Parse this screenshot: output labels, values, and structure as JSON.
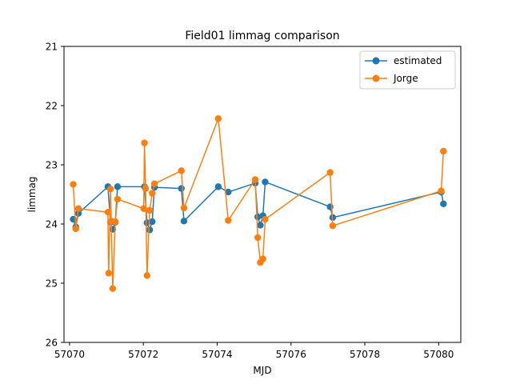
{
  "chart_data": {
    "type": "line",
    "title": "Field01 limmag comparison",
    "xlabel": "MJD",
    "ylabel": "limmag",
    "xlim": [
      57069.85,
      57080.6
    ],
    "ylim": [
      26,
      21
    ],
    "y_inverted": true,
    "xticks": [
      57070,
      57072,
      57074,
      57076,
      57078,
      57080
    ],
    "yticks": [
      21,
      22,
      23,
      24,
      25,
      26
    ],
    "grid": false,
    "legend_position": "top-right",
    "series": [
      {
        "name": "estimated",
        "color": "#1f77b4",
        "points": [
          [
            57070.1,
            23.92
          ],
          [
            57070.17,
            24.05
          ],
          [
            57070.24,
            23.82
          ],
          [
            57071.04,
            23.37
          ],
          [
            57071.11,
            23.97
          ],
          [
            57071.17,
            24.09
          ],
          [
            57071.24,
            23.97
          ],
          [
            57071.3,
            23.37
          ],
          [
            57072.03,
            23.37
          ],
          [
            57072.1,
            23.98
          ],
          [
            57072.17,
            24.1
          ],
          [
            57072.24,
            23.96
          ],
          [
            57072.3,
            23.38
          ],
          [
            57073.03,
            23.4
          ],
          [
            57073.1,
            23.95
          ],
          [
            57074.03,
            23.37
          ],
          [
            57074.3,
            23.46
          ],
          [
            57075.03,
            23.31
          ],
          [
            57075.1,
            23.88
          ],
          [
            57075.17,
            24.02
          ],
          [
            57075.24,
            23.86
          ],
          [
            57075.3,
            23.29
          ],
          [
            57077.06,
            23.71
          ],
          [
            57077.13,
            23.89
          ],
          [
            57080.07,
            23.46
          ],
          [
            57080.13,
            23.66
          ]
        ]
      },
      {
        "name": "Jorge",
        "color": "#ff7f0e",
        "points": [
          [
            57070.1,
            23.33
          ],
          [
            57070.17,
            24.08
          ],
          [
            57070.24,
            23.74
          ],
          [
            57071.04,
            23.8
          ],
          [
            57071.06,
            24.83
          ],
          [
            57071.11,
            23.41
          ],
          [
            57071.13,
            23.95
          ],
          [
            57071.17,
            25.09
          ],
          [
            57071.24,
            23.96
          ],
          [
            57071.3,
            23.58
          ],
          [
            57072.01,
            23.74
          ],
          [
            57072.03,
            22.63
          ],
          [
            57072.06,
            23.4
          ],
          [
            57072.1,
            24.87
          ],
          [
            57072.17,
            23.77
          ],
          [
            57072.24,
            23.48
          ],
          [
            57072.3,
            23.32
          ],
          [
            57073.03,
            23.1
          ],
          [
            57073.1,
            23.73
          ],
          [
            57074.03,
            22.22
          ],
          [
            57074.3,
            23.94
          ],
          [
            57075.03,
            23.25
          ],
          [
            57075.1,
            24.23
          ],
          [
            57075.17,
            24.65
          ],
          [
            57075.24,
            24.59
          ],
          [
            57075.3,
            23.92
          ],
          [
            57077.06,
            23.13
          ],
          [
            57077.13,
            24.03
          ],
          [
            57080.07,
            23.44
          ],
          [
            57080.13,
            22.77
          ]
        ]
      }
    ]
  }
}
